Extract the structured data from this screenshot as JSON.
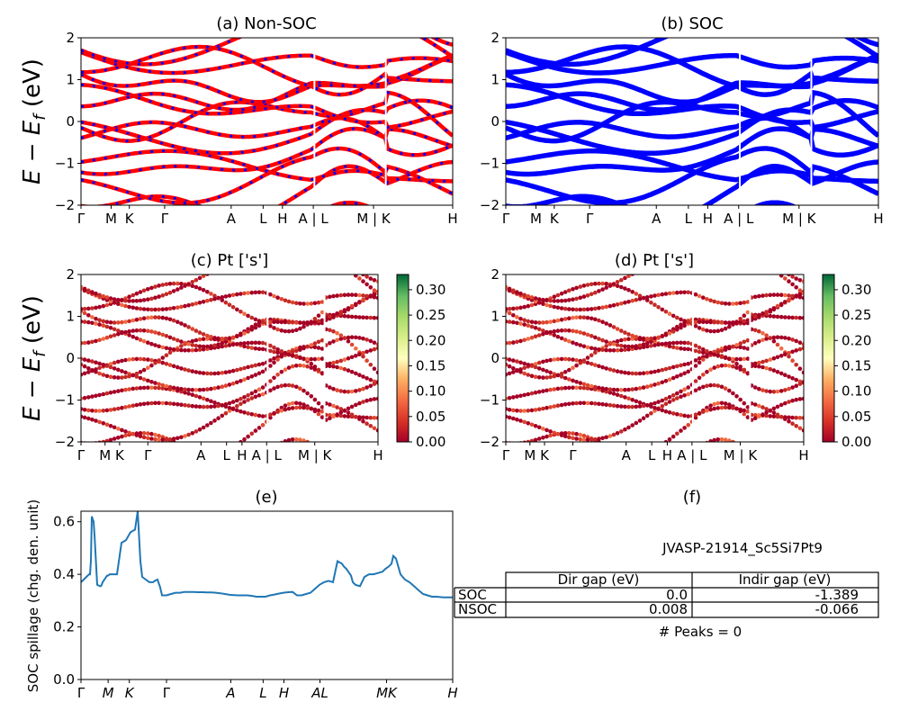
{
  "chart_data": [
    {
      "type": "line",
      "panel": "a",
      "title": "(a) Non-SOC",
      "ylabel": "E - E_f (eV)",
      "ylim": [
        -2,
        2
      ],
      "yticks": [
        "2",
        "1",
        "0",
        "−1",
        "−2"
      ],
      "kpath_labels": [
        "Γ",
        "M",
        "K",
        "Γ",
        "A",
        "L",
        "H",
        "A | L",
        "M | K",
        "H"
      ],
      "colors": [
        "#ff0000",
        "#0000ff"
      ],
      "bands_ev_at_gamma": [
        -1.9,
        -1.7,
        -1.45,
        -1.3,
        -0.85,
        -0.75,
        -0.3,
        -0.15,
        0.2,
        0.8,
        0.95,
        1.25,
        1.55,
        1.75,
        1.9
      ]
    },
    {
      "type": "line",
      "panel": "b",
      "title": "(b) SOC",
      "ylim": [
        -2,
        2
      ],
      "yticks": [
        "2",
        "1",
        "0",
        "−1",
        "−2"
      ],
      "kpath_labels": [
        "Γ",
        "M",
        "K",
        "Γ",
        "A",
        "L",
        "H",
        "A | L",
        "M | K",
        "H"
      ],
      "colors": [
        "#0000ff"
      ]
    },
    {
      "type": "scatter",
      "panel": "c",
      "title": "(c)  Pt ['s']",
      "ylabel": "E - E_f (eV)",
      "ylim": [
        -2,
        2
      ],
      "yticks": [
        "2",
        "1",
        "0",
        "−1",
        "−2"
      ],
      "kpath_labels": [
        "Γ",
        "M",
        "K",
        "Γ",
        "A",
        "L",
        "H",
        "A | L",
        "M | K",
        "H"
      ],
      "colorbar_ticks": [
        "0.30",
        "0.25",
        "0.20",
        "0.15",
        "0.10",
        "0.05",
        "0.00"
      ],
      "colorbar_range": [
        0,
        0.33
      ]
    },
    {
      "type": "scatter",
      "panel": "d",
      "title": "(d) Pt ['s']",
      "ylim": [
        -2,
        2
      ],
      "yticks": [
        "2",
        "1",
        "0",
        "−1",
        "−2"
      ],
      "kpath_labels": [
        "Γ",
        "M",
        "K",
        "Γ",
        "A",
        "L",
        "H",
        "A | L",
        "M | K",
        "H"
      ],
      "colorbar_ticks": [
        "0.30",
        "0.25",
        "0.20",
        "0.15",
        "0.10",
        "0.05",
        "0.00"
      ],
      "colorbar_range": [
        0,
        0.33
      ]
    },
    {
      "type": "line",
      "panel": "e",
      "title": "(e)",
      "ylabel": "SOC spillage (chg. den. unit)",
      "ylim": [
        0,
        0.64
      ],
      "yticks": [
        "0.6",
        "0.4",
        "0.2",
        "0.0"
      ],
      "xtick_labels": [
        "Γ",
        "M",
        "K",
        "Γ",
        "A",
        "L",
        "H",
        "AL",
        "MK",
        "H"
      ],
      "color": "#1f77b4",
      "x": [
        0,
        3,
        6,
        9,
        10,
        11,
        12,
        13,
        14,
        15,
        18,
        21,
        22,
        23,
        24,
        25,
        26,
        27,
        28,
        29,
        30,
        32,
        35,
        40,
        45,
        50,
        55,
        60,
        63,
        66,
        68,
        70,
        72,
        74,
        76,
        78,
        80,
        82,
        85,
        88,
        90,
        95,
        100,
        105,
        110,
        115,
        120,
        125,
        130,
        135,
        140,
        145,
        150,
        155,
        160,
        165,
        170,
        175,
        180,
        185,
        190,
        195,
        200,
        205,
        210,
        215,
        220,
        225,
        230,
        235,
        240,
        245,
        250,
        255,
        260,
        265,
        270,
        275,
        280,
        285,
        290,
        292,
        295,
        300,
        302,
        305,
        310,
        315,
        320,
        325,
        330,
        335,
        338,
        340,
        342,
        345,
        347,
        350,
        355,
        360,
        365,
        370,
        375,
        380,
        385,
        390,
        395,
        400,
        403,
        406,
        408,
        410,
        413
      ],
      "y": [
        0.37,
        0.38,
        0.39,
        0.4,
        0.4,
        0.45,
        0.62,
        0.61,
        0.6,
        0.55,
        0.36,
        0.355,
        0.355,
        0.36,
        0.37,
        0.375,
        0.38,
        0.385,
        0.39,
        0.395,
        0.395,
        0.4,
        0.4,
        0.4,
        0.52,
        0.53,
        0.56,
        0.57,
        0.64,
        0.45,
        0.39,
        0.385,
        0.38,
        0.375,
        0.37,
        0.37,
        0.37,
        0.375,
        0.38,
        0.35,
        0.32,
        0.32,
        0.325,
        0.33,
        0.33,
        0.333,
        0.333,
        0.333,
        0.332,
        0.332,
        0.331,
        0.331,
        0.33,
        0.328,
        0.325,
        0.322,
        0.321,
        0.32,
        0.32,
        0.32,
        0.318,
        0.315,
        0.315,
        0.315,
        0.32,
        0.323,
        0.327,
        0.33,
        0.332,
        0.333,
        0.32,
        0.32,
        0.325,
        0.33,
        0.345,
        0.36,
        0.37,
        0.375,
        0.37,
        0.45,
        0.44,
        0.43,
        0.42,
        0.395,
        0.37,
        0.36,
        0.355,
        0.39,
        0.4,
        0.4,
        0.405,
        0.41,
        0.42,
        0.425,
        0.43,
        0.44,
        0.47,
        0.46,
        0.4,
        0.38,
        0.37,
        0.355,
        0.34,
        0.325,
        0.32,
        0.315,
        0.315,
        0.313,
        0.312,
        0.312,
        0.312,
        0.312,
        0.312
      ]
    },
    {
      "type": "table",
      "panel": "f",
      "title": "(f)",
      "subtitle": "JVASP-21914_Sc5Si7Pt9",
      "columns": [
        "",
        "Dir gap (eV)",
        "Indir gap (eV)"
      ],
      "rows": [
        [
          "SOC",
          "0.0",
          "-1.389"
        ],
        [
          "NSOC",
          "0.008",
          "-0.066"
        ]
      ],
      "footer": "# Peaks = 0"
    }
  ]
}
